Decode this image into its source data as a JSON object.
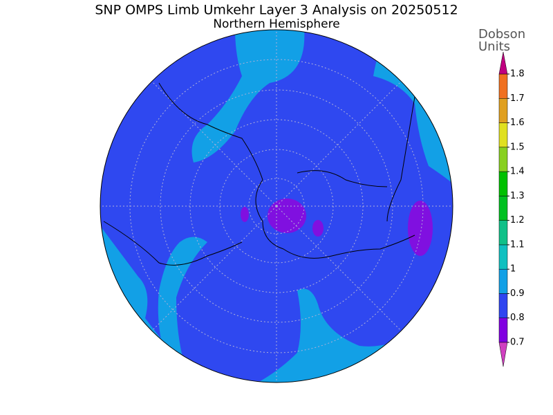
{
  "header": {
    "title": "SNP OMPS Limb Umkehr Layer 3 Analysis on 20250512",
    "subtitle": "Northern Hemisphere"
  },
  "colorbar": {
    "units": [
      "Dobson",
      "Units"
    ],
    "ticks": [
      0.7,
      0.8,
      0.9,
      1,
      1.1,
      1.2,
      1.3,
      1.4,
      1.5,
      1.6,
      1.7,
      1.8
    ],
    "segment_colors": [
      "#8000e0",
      "#2f45f0",
      "#12a0e6",
      "#10c0c0",
      "#10c088",
      "#00c020",
      "#00c000",
      "#88d020",
      "#e0e020",
      "#e0a020",
      "#f07020",
      "#f00000"
    ],
    "under_color": "#d040c0",
    "over_color": "#c00080"
  }
}
